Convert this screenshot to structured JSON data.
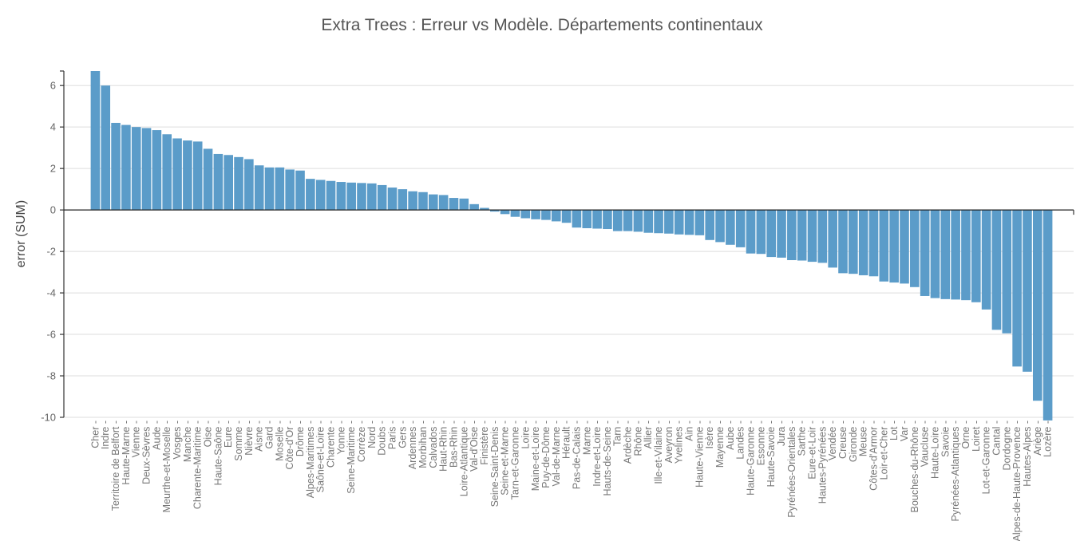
{
  "chart_data": {
    "type": "bar",
    "title": "Extra Trees : Erreur vs Modèle. Départements continentaux",
    "xlabel": "",
    "ylabel": "error (SUM)",
    "ylim": [
      -10,
      6.7
    ],
    "yticks": [
      6,
      4,
      2,
      0,
      -2,
      -4,
      -6,
      -8,
      -10
    ],
    "ytick_labels": [
      "6",
      "4",
      "2",
      "0",
      "-2",
      "-4",
      "-6",
      "-8",
      "-10"
    ],
    "grid": true,
    "bar_color": "#5b9cc9",
    "categories": [
      "Cher",
      "Indre",
      "Territoire de Belfort",
      "Haute-Marne",
      "Vienne",
      "Deux-Sèvres",
      "Aude",
      "Meurthe-et-Moselle",
      "Vosges",
      "Manche",
      "Charente-Maritime",
      "Oise",
      "Haute-Saône",
      "Eure",
      "Somme",
      "Nièvre",
      "Aisne",
      "Gard",
      "Moselle",
      "Côte-d'Or",
      "Drôme",
      "Alpes-Maritimes",
      "Saône-et-Loire",
      "Charente",
      "Yonne",
      "Seine-Maritime",
      "Corrèze",
      "Nord",
      "Doubs",
      "Paris",
      "Gers",
      "Ardennes",
      "Morbihan",
      "Calvados",
      "Haut-Rhin",
      "Bas-Rhin",
      "Loire-Atlantique",
      "Val-d'Oise",
      "Finistère",
      "Seine-Saint-Denis",
      "Seine-et-Marne",
      "Tarn-et-Garonne",
      "Loire",
      "Maine-et-Loire",
      "Puy-de-Dôme",
      "Val-de-Marne",
      "Hérault",
      "Pas-de-Calais",
      "Marne",
      "Indre-et-Loire",
      "Hauts-de-Seine",
      "Tarn",
      "Ardèche",
      "Rhône",
      "Allier",
      "Ille-et-Vilaine",
      "Aveyron",
      "Yvelines",
      "Ain",
      "Haute-Vienne",
      "Isère",
      "Mayenne",
      "Aube",
      "Landes",
      "Haute-Garonne",
      "Essonne",
      "Haute-Savoie",
      "Jura",
      "Pyrénées-Orientales",
      "Sarthe",
      "Eure-et-Loir",
      "Hautes-Pyrénées",
      "Vendée",
      "Creuse",
      "Gironde",
      "Meuse",
      "Côtes-d'Armor",
      "Loir-et-Cher",
      "Lot",
      "Var",
      "Bouches-du-Rhône",
      "Vaucluse",
      "Haute-Loire",
      "Savoie",
      "Pyrénées-Atlantiques",
      "Orne",
      "Loiret",
      "Lot-et-Garonne",
      "Cantal",
      "Dordogne",
      "Alpes-de-Haute-Provence",
      "Hautes-Alpes",
      "Ariège",
      "Lozère"
    ],
    "values": [
      6.7,
      6.0,
      4.2,
      4.1,
      4.0,
      3.95,
      3.85,
      3.65,
      3.45,
      3.35,
      3.3,
      2.95,
      2.7,
      2.65,
      2.55,
      2.45,
      2.15,
      2.05,
      2.05,
      1.95,
      1.9,
      1.5,
      1.45,
      1.4,
      1.35,
      1.32,
      1.3,
      1.28,
      1.2,
      1.08,
      1.0,
      0.9,
      0.86,
      0.75,
      0.72,
      0.58,
      0.55,
      0.28,
      0.1,
      -0.08,
      -0.2,
      -0.33,
      -0.4,
      -0.45,
      -0.48,
      -0.55,
      -0.62,
      -0.85,
      -0.88,
      -0.9,
      -0.92,
      -1.02,
      -1.02,
      -1.05,
      -1.1,
      -1.12,
      -1.14,
      -1.18,
      -1.2,
      -1.22,
      -1.45,
      -1.55,
      -1.68,
      -1.8,
      -2.1,
      -2.12,
      -2.27,
      -2.3,
      -2.42,
      -2.44,
      -2.5,
      -2.55,
      -2.78,
      -3.05,
      -3.08,
      -3.15,
      -3.2,
      -3.45,
      -3.5,
      -3.55,
      -3.72,
      -4.15,
      -4.25,
      -4.3,
      -4.32,
      -4.35,
      -4.45,
      -4.8,
      -5.78,
      -5.95,
      -7.55,
      -7.8,
      -9.2,
      -10.15
    ]
  }
}
